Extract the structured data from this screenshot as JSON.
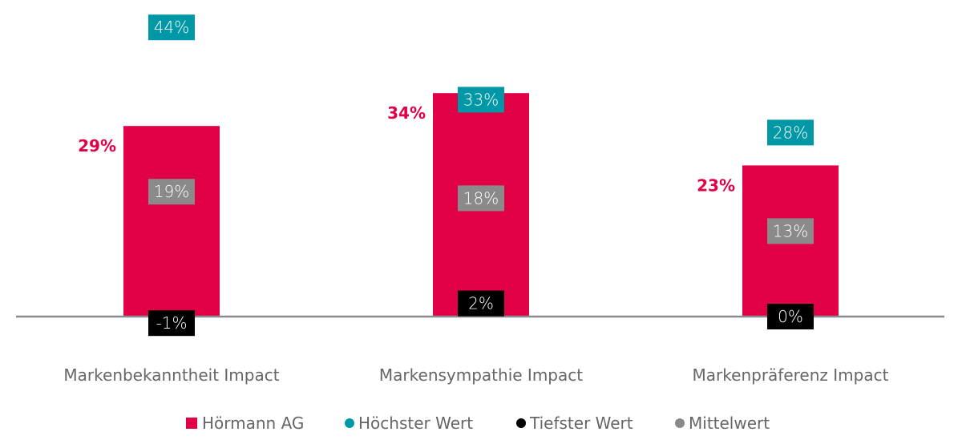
{
  "chart_data": {
    "type": "bar",
    "title": "",
    "xlabel": "",
    "ylabel": "",
    "ylim": [
      -5,
      48
    ],
    "grid": false,
    "legend_position": "bottom",
    "categories": [
      "Markenbekanntheit Impact",
      "Markensympathie Impact",
      "Markenpräferenz Impact"
    ],
    "series": [
      {
        "name": "Hörmann AG",
        "kind": "bar",
        "color": "#e10046",
        "values": [
          29,
          34,
          23
        ]
      },
      {
        "name": "Höchster Wert",
        "kind": "marker",
        "color": "#0098a6",
        "values": [
          44,
          33,
          28
        ]
      },
      {
        "name": "Tiefster Wert",
        "kind": "marker",
        "color": "#000000",
        "values": [
          -1,
          2,
          0
        ]
      },
      {
        "name": "Mittelwert",
        "kind": "marker",
        "color": "#8a8a8a",
        "values": [
          19,
          18,
          13
        ]
      }
    ],
    "value_suffix": "%"
  }
}
